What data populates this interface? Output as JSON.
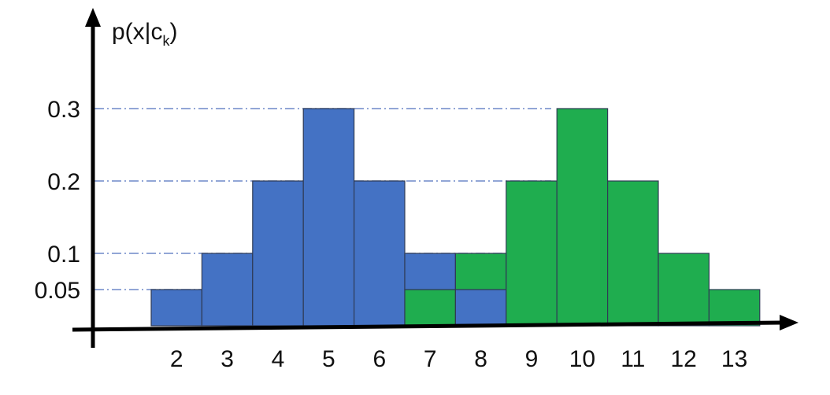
{
  "chart_data": {
    "type": "bar",
    "title": "",
    "xlabel": "",
    "ylabel": {
      "main": "p(x|c",
      "subscript": "k",
      "close": ")"
    },
    "x_ticks": [
      "2",
      "3",
      "4",
      "5",
      "6",
      "7",
      "8",
      "9",
      "10",
      "11",
      "12",
      "13"
    ],
    "y_ticks": [
      "0.05",
      "0.1",
      "0.2",
      "0.3"
    ],
    "ylim": [
      0,
      0.3
    ],
    "grid": "dash-dot horizontal lines at tick values",
    "colors": {
      "blue": "#4472c4",
      "green": "#1fad4f",
      "grid": "#6f88c8"
    },
    "series": [
      {
        "color": "blue",
        "x": [
          2,
          3,
          4,
          5,
          6,
          7,
          8
        ],
        "values": [
          0.05,
          0.1,
          0.2,
          0.3,
          0.2,
          0.1,
          0.05
        ]
      },
      {
        "color": "green",
        "x": [
          7,
          8,
          9,
          10,
          11,
          12,
          13
        ],
        "values": [
          0.05,
          0.1,
          0.2,
          0.3,
          0.2,
          0.1,
          0.05
        ]
      }
    ]
  }
}
